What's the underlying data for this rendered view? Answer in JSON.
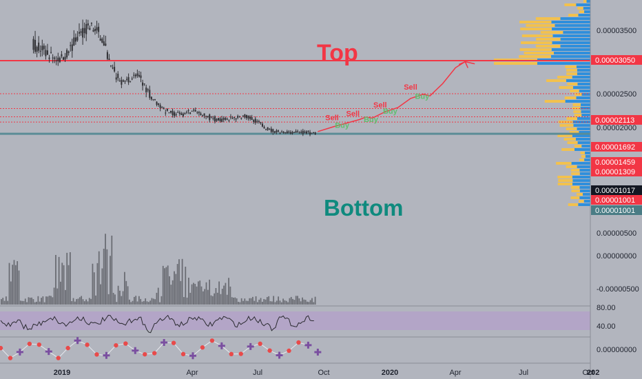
{
  "colors": {
    "background": "#b2b5be",
    "candle": "#2f2f33",
    "volume": "#6a6c73",
    "redline": "#f23645",
    "teal": "#5b8c96",
    "profile_orange": "#f2c14e",
    "profile_blue": "#2f8fdc",
    "rsi_band": "#b3a1c9",
    "price_label_red": "#f23645",
    "price_label_black": "#131722",
    "price_label_teal": "#4a7c85",
    "text_top": "#f23645",
    "text_bottom": "#0f8a7e",
    "sell": "#f23645",
    "buy": "#5fbf6f"
  },
  "annotations": {
    "top": "Top",
    "bottom": "Bottom",
    "sell": "Sell",
    "buy": "Buy"
  },
  "chart_data": {
    "type": "candlestick",
    "x_ticks": [
      "2019",
      "Apr",
      "Jul",
      "Oct",
      "2020",
      "Apr",
      "Jul",
      "Oct",
      "202"
    ],
    "price_axis": {
      "ticks": [
        "0.00003500",
        "0.00002500",
        "0.00002000",
        "0.00000500",
        "0.00000000",
        "-0.00000500"
      ],
      "labels": [
        {
          "text": "0.00003050",
          "value": 3.05e-05,
          "style": "red"
        },
        {
          "text": "0.00002113",
          "value": 2.113e-05,
          "style": "red"
        },
        {
          "text": "0.00001692",
          "value": 1.692e-05,
          "style": "red"
        },
        {
          "text": "0.00001459",
          "value": 1.459e-05,
          "style": "red"
        },
        {
          "text": "0.00001309",
          "value": 1.309e-05,
          "style": "red"
        },
        {
          "text": "0.00001017",
          "value": 1.017e-05,
          "style": "black"
        },
        {
          "text": "0.00001001",
          "value": 1.001e-05,
          "style": "red"
        },
        {
          "text": "0.00001001",
          "value": 1.001e-05,
          "style": "teal"
        }
      ]
    },
    "rsi_axis": {
      "ticks": [
        "80.00",
        "40.00"
      ]
    },
    "osc_axis": {
      "ticks": [
        "0.00000000"
      ]
    },
    "levels": [
      {
        "name": "top",
        "value": 3.05e-05,
        "style": "solid"
      },
      {
        "value": 2.113e-05,
        "style": "dotted"
      },
      {
        "value": 1.692e-05,
        "style": "dotted"
      },
      {
        "value": 1.459e-05,
        "style": "dotted"
      },
      {
        "value": 1.309e-05,
        "style": "dotted"
      },
      {
        "name": "bottom",
        "value": 1.017e-05,
        "style": "solid"
      }
    ],
    "price_path": [
      [
        0,
        4.05e-05
      ],
      [
        4,
        3.95e-05
      ],
      [
        8,
        3.75e-05
      ],
      [
        10,
        3.55e-05
      ],
      [
        12,
        3.4e-05
      ],
      [
        14,
        3.25e-05
      ],
      [
        16,
        3.15e-05
      ],
      [
        18,
        3.1e-05
      ],
      [
        20,
        3.2e-05
      ],
      [
        22,
        3.45e-05
      ],
      [
        24,
        3.75e-05
      ],
      [
        26,
        3.95e-05
      ],
      [
        28,
        4e-05
      ],
      [
        30,
        3.85e-05
      ],
      [
        32,
        3.55e-05
      ],
      [
        34,
        2.9e-05
      ],
      [
        36,
        2.6e-05
      ],
      [
        38,
        2.45e-05
      ],
      [
        40,
        2.5e-05
      ],
      [
        42,
        2.65e-05
      ],
      [
        44,
        2.45e-05
      ],
      [
        46,
        2.15e-05
      ],
      [
        48,
        1.9e-05
      ],
      [
        50,
        1.75e-05
      ],
      [
        52,
        1.6e-05
      ],
      [
        54,
        1.55e-05
      ],
      [
        56,
        1.52e-05
      ],
      [
        58,
        1.58e-05
      ],
      [
        60,
        1.62e-05
      ],
      [
        62,
        1.55e-05
      ],
      [
        64,
        1.48e-05
      ],
      [
        66,
        1.42e-05
      ],
      [
        68,
        1.37e-05
      ],
      [
        70,
        1.4e-05
      ],
      [
        72,
        1.4e-05
      ],
      [
        74,
        1.45e-05
      ],
      [
        76,
        1.48e-05
      ],
      [
        78,
        1.4e-05
      ],
      [
        80,
        1.32e-05
      ],
      [
        82,
        1.18e-05
      ],
      [
        84,
        1.08e-05
      ],
      [
        86,
        1.03e-05
      ],
      [
        88,
        1.01e-05
      ],
      [
        90,
        1.03e-05
      ],
      [
        92,
        1.03e-05
      ],
      [
        94,
        1.02e-05
      ],
      [
        96,
        1.01e-05
      ],
      [
        97,
        9.9e-06
      ],
      [
        98,
        1.01e-05
      ]
    ],
    "projection": [
      [
        99,
        1.04e-05
      ],
      [
        104,
        1.18e-05
      ],
      [
        108,
        1.28e-05
      ],
      [
        112,
        1.38e-05
      ],
      [
        114,
        1.45e-05
      ],
      [
        116,
        1.42e-05
      ],
      [
        120,
        1.6e-05
      ],
      [
        124,
        1.72e-05
      ],
      [
        128,
        1.98e-05
      ],
      [
        132,
        2.1e-05
      ],
      [
        134,
        2.05e-05
      ],
      [
        138,
        2.4e-05
      ],
      [
        142,
        2.85e-05
      ],
      [
        145,
        3.02e-05
      ],
      [
        148,
        2.96e-05
      ]
    ],
    "signals": [
      {
        "t": 103.5,
        "label": "sell",
        "value": 1.36e-05
      },
      {
        "t": 106.5,
        "label": "buy",
        "value": 1.15e-05
      },
      {
        "t": 110,
        "label": "sell",
        "value": 1.48e-05
      },
      {
        "t": 115.5,
        "label": "buy",
        "value": 1.31e-05
      },
      {
        "t": 118.5,
        "label": "sell",
        "value": 1.72e-05
      },
      {
        "t": 121.5,
        "label": "buy",
        "value": 1.55e-05
      },
      {
        "t": 128,
        "label": "sell",
        "value": 2.23e-05
      },
      {
        "t": 131.5,
        "label": "buy",
        "value": 1.97e-05
      }
    ]
  }
}
